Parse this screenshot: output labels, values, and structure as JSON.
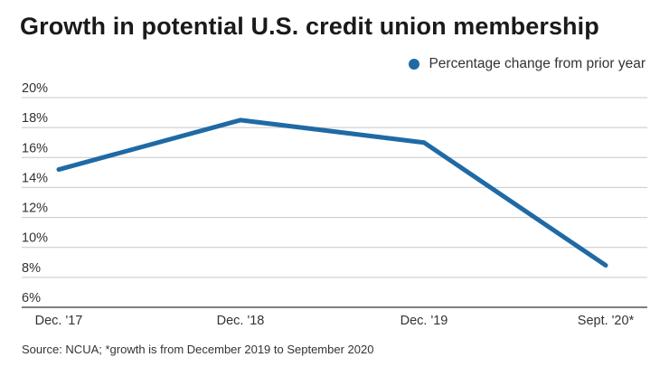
{
  "title": "Growth in potential U.S. credit union membership",
  "source": "Source: NCUA; *growth is from December 2019 to September 2020",
  "colors": {
    "series": "#1f6aa5",
    "grid": "#c8c8c8",
    "axis": "#333333"
  },
  "chart_data": {
    "type": "line",
    "title": "Growth in potential U.S. credit union membership",
    "xlabel": "",
    "ylabel": "",
    "categories": [
      "Dec. '17",
      "Dec. '18",
      "Dec. '19",
      "Sept. '20*"
    ],
    "series": [
      {
        "name": "Percentage change from prior year",
        "values": [
          15.2,
          18.5,
          17.0,
          8.8
        ]
      }
    ],
    "ylim": [
      6,
      20
    ],
    "yticks": [
      6,
      8,
      10,
      12,
      14,
      16,
      18,
      20
    ],
    "ytick_labels": [
      "6%",
      "8%",
      "10%",
      "12%",
      "14%",
      "16%",
      "18%",
      "20%"
    ],
    "grid": true,
    "legend": "top-right"
  }
}
